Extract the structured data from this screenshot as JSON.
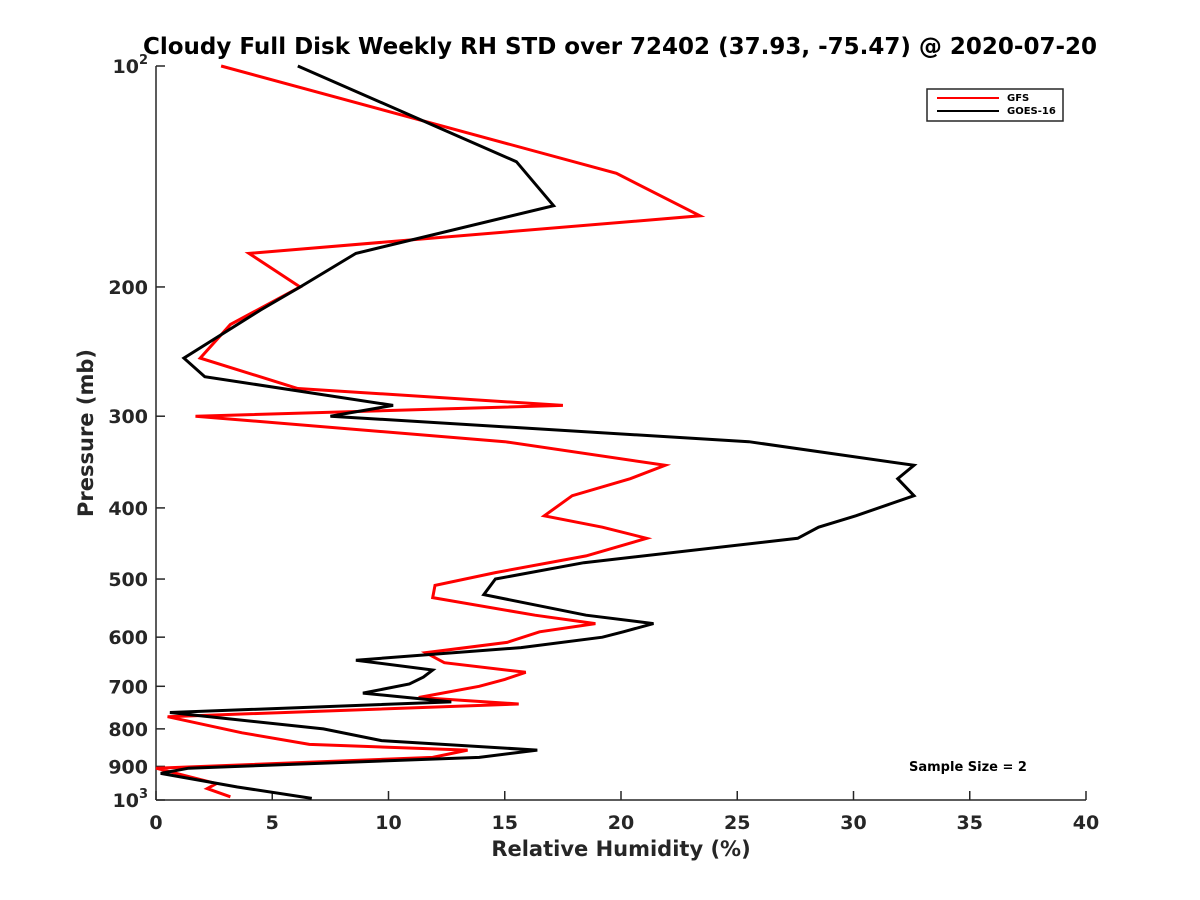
{
  "chart_data": {
    "type": "line",
    "title": "Cloudy Full Disk Weekly RH STD over 72402 (37.93, -75.47) @ 2020-07-20",
    "xlabel": "Relative Humidity (%)",
    "ylabel": "Pressure (mb)",
    "xlim": [
      0,
      40
    ],
    "ylim": [
      100,
      1000
    ],
    "y_scale": "log",
    "y_reversed": true,
    "grid": false,
    "legend_position": "top-right",
    "x_ticks": [
      0,
      5,
      10,
      15,
      20,
      25,
      30,
      35,
      40
    ],
    "y_ticks": [
      {
        "value": 100,
        "base": "10",
        "exp": "2"
      },
      {
        "value": 200,
        "label": "200"
      },
      {
        "value": 300,
        "label": "300"
      },
      {
        "value": 400,
        "label": "400"
      },
      {
        "value": 500,
        "label": "500"
      },
      {
        "value": 600,
        "label": "600"
      },
      {
        "value": 700,
        "label": "700"
      },
      {
        "value": 800,
        "label": "800"
      },
      {
        "value": 900,
        "label": "900"
      },
      {
        "value": 1000,
        "base": "10",
        "exp": "3"
      }
    ],
    "annotation": "Sample Size = 2",
    "series": [
      {
        "name": "GFS",
        "color": "#ff0000",
        "points": [
          [
            2.8,
            100
          ],
          [
            19.8,
            140
          ],
          [
            23.4,
            160
          ],
          [
            4.0,
            180
          ],
          [
            6.2,
            200
          ],
          [
            3.2,
            225
          ],
          [
            1.9,
            250
          ],
          [
            6.1,
            275
          ],
          [
            17.5,
            290
          ],
          [
            1.7,
            300
          ],
          [
            15.0,
            325
          ],
          [
            21.9,
            350
          ],
          [
            20.4,
            365
          ],
          [
            17.9,
            385
          ],
          [
            16.7,
            410
          ],
          [
            19.2,
            425
          ],
          [
            21.1,
            440
          ],
          [
            18.5,
            465
          ],
          [
            14.6,
            490
          ],
          [
            12.0,
            510
          ],
          [
            11.9,
            530
          ],
          [
            16.3,
            560
          ],
          [
            18.9,
            575
          ],
          [
            16.5,
            590
          ],
          [
            15.1,
            610
          ],
          [
            11.6,
            630
          ],
          [
            12.4,
            650
          ],
          [
            15.9,
            670
          ],
          [
            15.0,
            685
          ],
          [
            13.9,
            700
          ],
          [
            11.3,
            725
          ],
          [
            15.6,
            740
          ],
          [
            0.5,
            770
          ],
          [
            3.7,
            810
          ],
          [
            6.6,
            840
          ],
          [
            13.4,
            855
          ],
          [
            11.9,
            875
          ],
          [
            0.0,
            905
          ],
          [
            2.6,
            950
          ],
          [
            2.2,
            965
          ],
          [
            3.2,
            990
          ]
        ]
      },
      {
        "name": "GOES-16",
        "color": "#000000",
        "points": [
          [
            6.1,
            100
          ],
          [
            15.5,
            135
          ],
          [
            17.1,
            155
          ],
          [
            8.6,
            180
          ],
          [
            6.2,
            200
          ],
          [
            4.5,
            215
          ],
          [
            1.2,
            250
          ],
          [
            2.1,
            265
          ],
          [
            10.2,
            290
          ],
          [
            7.5,
            300
          ],
          [
            25.5,
            325
          ],
          [
            32.6,
            350
          ],
          [
            31.9,
            365
          ],
          [
            32.6,
            385
          ],
          [
            30.1,
            410
          ],
          [
            28.5,
            425
          ],
          [
            27.6,
            440
          ],
          [
            18.4,
            475
          ],
          [
            14.6,
            500
          ],
          [
            14.1,
            525
          ],
          [
            18.5,
            560
          ],
          [
            21.4,
            575
          ],
          [
            20.1,
            590
          ],
          [
            19.2,
            600
          ],
          [
            15.7,
            620
          ],
          [
            8.6,
            645
          ],
          [
            11.9,
            665
          ],
          [
            11.5,
            680
          ],
          [
            10.9,
            695
          ],
          [
            8.9,
            715
          ],
          [
            12.7,
            735
          ],
          [
            0.6,
            760
          ],
          [
            7.2,
            800
          ],
          [
            9.7,
            830
          ],
          [
            16.4,
            855
          ],
          [
            13.9,
            875
          ],
          [
            1.4,
            905
          ],
          [
            0.2,
            920
          ],
          [
            3.5,
            960
          ],
          [
            6.7,
            995
          ]
        ]
      }
    ]
  }
}
